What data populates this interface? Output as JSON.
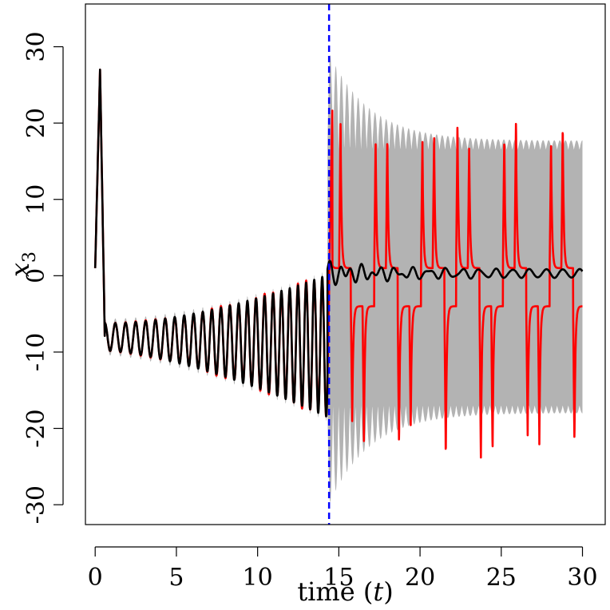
{
  "chart_data": {
    "type": "line",
    "title": "",
    "xlabel": "time (t)",
    "xlabel_parts": {
      "text": "time (",
      "var": "t",
      "close": ")"
    },
    "ylabel": "x3",
    "ylabel_parts": {
      "var": "x",
      "sub": "3"
    },
    "xlim": [
      -0.6,
      31.4
    ],
    "ylim": [
      -32.6,
      35.6
    ],
    "xticks": [
      0,
      5,
      10,
      15,
      20,
      25,
      30
    ],
    "yticks": [
      -30,
      -20,
      -10,
      0,
      10,
      20,
      30
    ],
    "grid": false,
    "legend": "none",
    "vline": {
      "x": 14.4,
      "color": "#0000ff",
      "style": "dashed"
    },
    "series": [
      {
        "key": "envelope",
        "color": "#b3b3b3",
        "kind": "band"
      },
      {
        "key": "red",
        "color": "#ff0000",
        "kind": "line"
      },
      {
        "key": "black",
        "color": "#000000",
        "kind": "line"
      }
    ]
  }
}
